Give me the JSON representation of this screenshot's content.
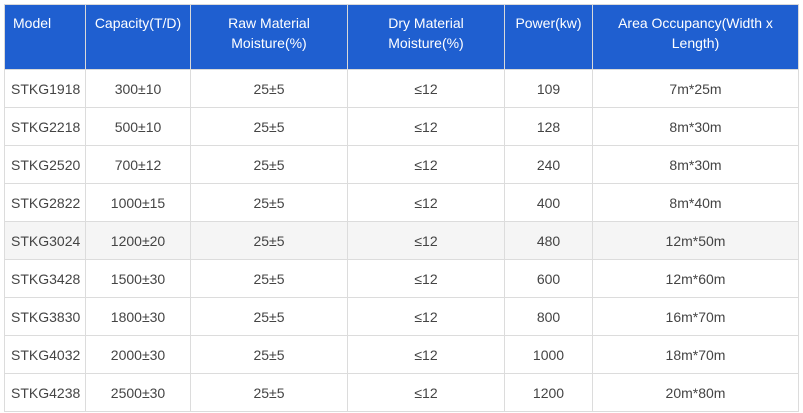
{
  "table": {
    "headers": {
      "model": "Model",
      "capacity": "Capacity(T/D)",
      "raw_moisture_line1": "Raw Material",
      "raw_moisture_line2": "Moisture(%)",
      "dry_moisture_line1": "Dry Material",
      "dry_moisture_line2": "Moisture(%)",
      "power": "Power(kw)",
      "area_line1": "Area Occupancy(Width x",
      "area_line2": "Length)"
    },
    "header_color": "#1f5fd0",
    "rows": [
      {
        "model": "STKG1918",
        "capacity": "300±10",
        "raw": "25±5",
        "dry": "≤12",
        "power": "109",
        "area": "7m*25m"
      },
      {
        "model": "STKG2218",
        "capacity": "500±10",
        "raw": "25±5",
        "dry": "≤12",
        "power": "128",
        "area": "8m*30m"
      },
      {
        "model": "STKG2520",
        "capacity": "700±12",
        "raw": "25±5",
        "dry": "≤12",
        "power": "240",
        "area": "8m*30m"
      },
      {
        "model": "STKG2822",
        "capacity": "1000±15",
        "raw": "25±5",
        "dry": "≤12",
        "power": "400",
        "area": "8m*40m"
      },
      {
        "model": "STKG3024",
        "capacity": "1200±20",
        "raw": "25±5",
        "dry": "≤12",
        "power": "480",
        "area": "12m*50m"
      },
      {
        "model": "STKG3428",
        "capacity": "1500±30",
        "raw": "25±5",
        "dry": "≤12",
        "power": "600",
        "area": "12m*60m"
      },
      {
        "model": "STKG3830",
        "capacity": "1800±30",
        "raw": "25±5",
        "dry": "≤12",
        "power": "800",
        "area": "16m*70m"
      },
      {
        "model": "STKG4032",
        "capacity": "2000±30",
        "raw": "25±5",
        "dry": "≤12",
        "power": "1000",
        "area": "18m*70m"
      },
      {
        "model": "STKG4238",
        "capacity": "2500±30",
        "raw": "25±5",
        "dry": "≤12",
        "power": "1200",
        "area": "20m*80m"
      }
    ]
  }
}
